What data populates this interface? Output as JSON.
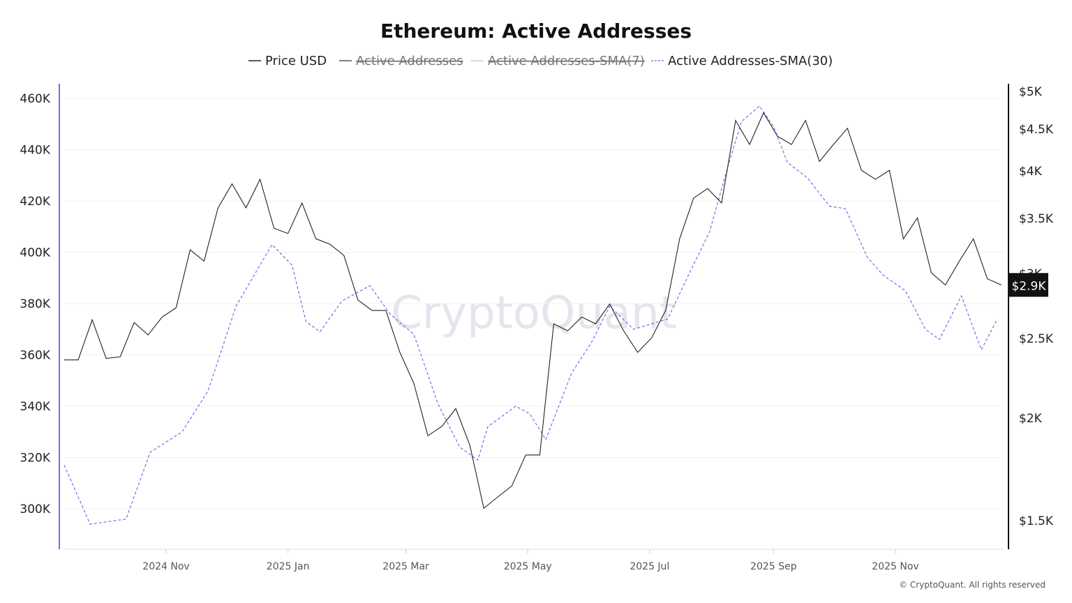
{
  "chart_data": {
    "type": "line",
    "title": "Ethereum: Active Addresses",
    "legend": [
      {
        "name": "Price USD",
        "color": "#222222",
        "style": "solid",
        "hidden": false
      },
      {
        "name": "Active Addresses",
        "color": "#555555",
        "style": "solid",
        "hidden": true
      },
      {
        "name": "Active Addresses-SMA(7)",
        "color": "#888888",
        "style": "dotted",
        "hidden": true
      },
      {
        "name": "Active Addresses-SMA(30)",
        "color": "#7b68ee",
        "style": "dashed",
        "hidden": false
      }
    ],
    "legend_placement": "top-center",
    "x_ticks": [
      "2024 Nov",
      "2025 Jan",
      "2025 Mar",
      "2025 May",
      "2025 Jul",
      "2025 Sep",
      "2025 Nov"
    ],
    "x_tick_dates": [
      "2024-11-01",
      "2025-01-01",
      "2025-03-01",
      "2025-05-01",
      "2025-07-01",
      "2025-09-01",
      "2025-11-01"
    ],
    "xlim": [
      "2024-09-11",
      "2025-12-24"
    ],
    "left_axis": {
      "ticks": [
        "460K",
        "440K",
        "420K",
        "400K",
        "380K",
        "360K",
        "340K",
        "320K",
        "300K"
      ],
      "tick_values": [
        460,
        440,
        420,
        400,
        380,
        360,
        340,
        320,
        300
      ],
      "unit": "thousand addresses"
    },
    "right_axis": {
      "scale": "log",
      "ticks": [
        "$5K",
        "$4.5K",
        "$4K",
        "$3.5K",
        "$3K",
        "$2.5K",
        "$2K",
        "$1.5K"
      ],
      "tick_values": [
        5000,
        4500,
        4000,
        3500,
        3000,
        2500,
        2000,
        1500
      ],
      "current_label": "$2.9K"
    },
    "price_usd": {
      "start": "2024-09-11",
      "interval_days": 7,
      "values": [
        2350,
        2350,
        2630,
        2360,
        2370,
        2610,
        2520,
        2650,
        2720,
        3200,
        3100,
        3600,
        3850,
        3600,
        3900,
        3400,
        3350,
        3650,
        3300,
        3250,
        3150,
        2780,
        2700,
        2700,
        2400,
        2200,
        1900,
        1950,
        2050,
        1850,
        1550,
        1600,
        1650,
        1800,
        1800,
        2600,
        2550,
        2650,
        2600,
        2750,
        2550,
        2400,
        2500,
        2700,
        3300,
        3700,
        3800,
        3650,
        4600,
        4300,
        4700,
        4400,
        4300,
        4600,
        4100,
        4300,
        4500,
        4000,
        3900,
        4000,
        3300,
        3500,
        3000,
        2900,
        3100,
        3300,
        2950,
        2900
      ]
    },
    "sma30_thousands": [
      [
        "2024-09-11",
        317
      ],
      [
        "2024-09-24",
        294
      ],
      [
        "2024-10-12",
        296
      ],
      [
        "2024-10-24",
        322
      ],
      [
        "2024-11-09",
        330
      ],
      [
        "2024-11-22",
        346
      ],
      [
        "2024-12-06",
        379
      ],
      [
        "2024-12-24",
        403
      ],
      [
        "2025-01-03",
        395
      ],
      [
        "2025-01-10",
        373
      ],
      [
        "2025-01-17",
        369
      ],
      [
        "2025-01-28",
        381
      ],
      [
        "2025-02-11",
        387
      ],
      [
        "2025-02-21",
        376
      ],
      [
        "2025-03-05",
        368
      ],
      [
        "2025-03-17",
        341
      ],
      [
        "2025-03-28",
        324
      ],
      [
        "2025-04-06",
        319
      ],
      [
        "2025-04-11",
        332
      ],
      [
        "2025-04-25",
        340
      ],
      [
        "2025-05-02",
        337
      ],
      [
        "2025-05-10",
        327
      ],
      [
        "2025-05-23",
        353
      ],
      [
        "2025-06-02",
        365
      ],
      [
        "2025-06-11",
        379
      ],
      [
        "2025-06-23",
        370
      ],
      [
        "2025-07-10",
        374
      ],
      [
        "2025-07-21",
        392
      ],
      [
        "2025-07-31",
        408
      ],
      [
        "2025-08-09",
        433
      ],
      [
        "2025-08-16",
        451
      ],
      [
        "2025-08-25",
        457
      ],
      [
        "2025-09-01",
        449
      ],
      [
        "2025-09-08",
        435
      ],
      [
        "2025-09-18",
        429
      ],
      [
        "2025-09-29",
        418
      ],
      [
        "2025-10-07",
        417
      ],
      [
        "2025-10-18",
        398
      ],
      [
        "2025-10-26",
        391
      ],
      [
        "2025-11-06",
        385
      ],
      [
        "2025-11-16",
        370
      ],
      [
        "2025-11-23",
        366
      ],
      [
        "2025-12-04",
        383
      ],
      [
        "2025-12-14",
        362
      ],
      [
        "2025-12-22",
        374
      ]
    ],
    "grid": true
  },
  "watermark": "CryptoQuant",
  "copyright": "© CryptoQuant. All rights reserved"
}
